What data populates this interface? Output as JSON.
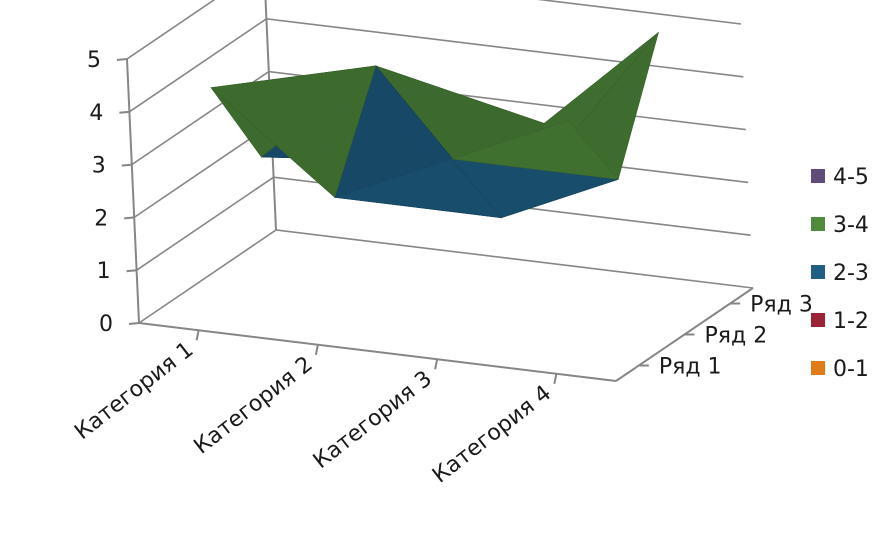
{
  "chart_data": {
    "type": "surface",
    "categories": [
      "Категория 1",
      "Категория 2",
      "Категория 3",
      "Категория 4"
    ],
    "series": [
      {
        "name": "Ряд 1",
        "values": [
          4.3,
          2.5,
          3.5,
          4.5
        ]
      },
      {
        "name": "Ряд 2",
        "values": [
          2.4,
          4.4,
          1.8,
          2.8
        ]
      },
      {
        "name": "Ряд 3",
        "values": [
          2.0,
          2.0,
          3.0,
          5.0
        ]
      }
    ],
    "zlim": [
      0,
      5
    ],
    "z_ticks": [
      "0",
      "1",
      "2",
      "3",
      "4",
      "5"
    ],
    "legend": {
      "position": "right",
      "items": [
        {
          "label": "4-5",
          "color": "#5f4a7b"
        },
        {
          "label": "3-4",
          "color": "#4f8a3c"
        },
        {
          "label": "2-3",
          "color": "#1f5f86"
        },
        {
          "label": "1-2",
          "color": "#9b2335"
        },
        {
          "label": "0-1",
          "color": "#e07b17"
        }
      ]
    }
  }
}
